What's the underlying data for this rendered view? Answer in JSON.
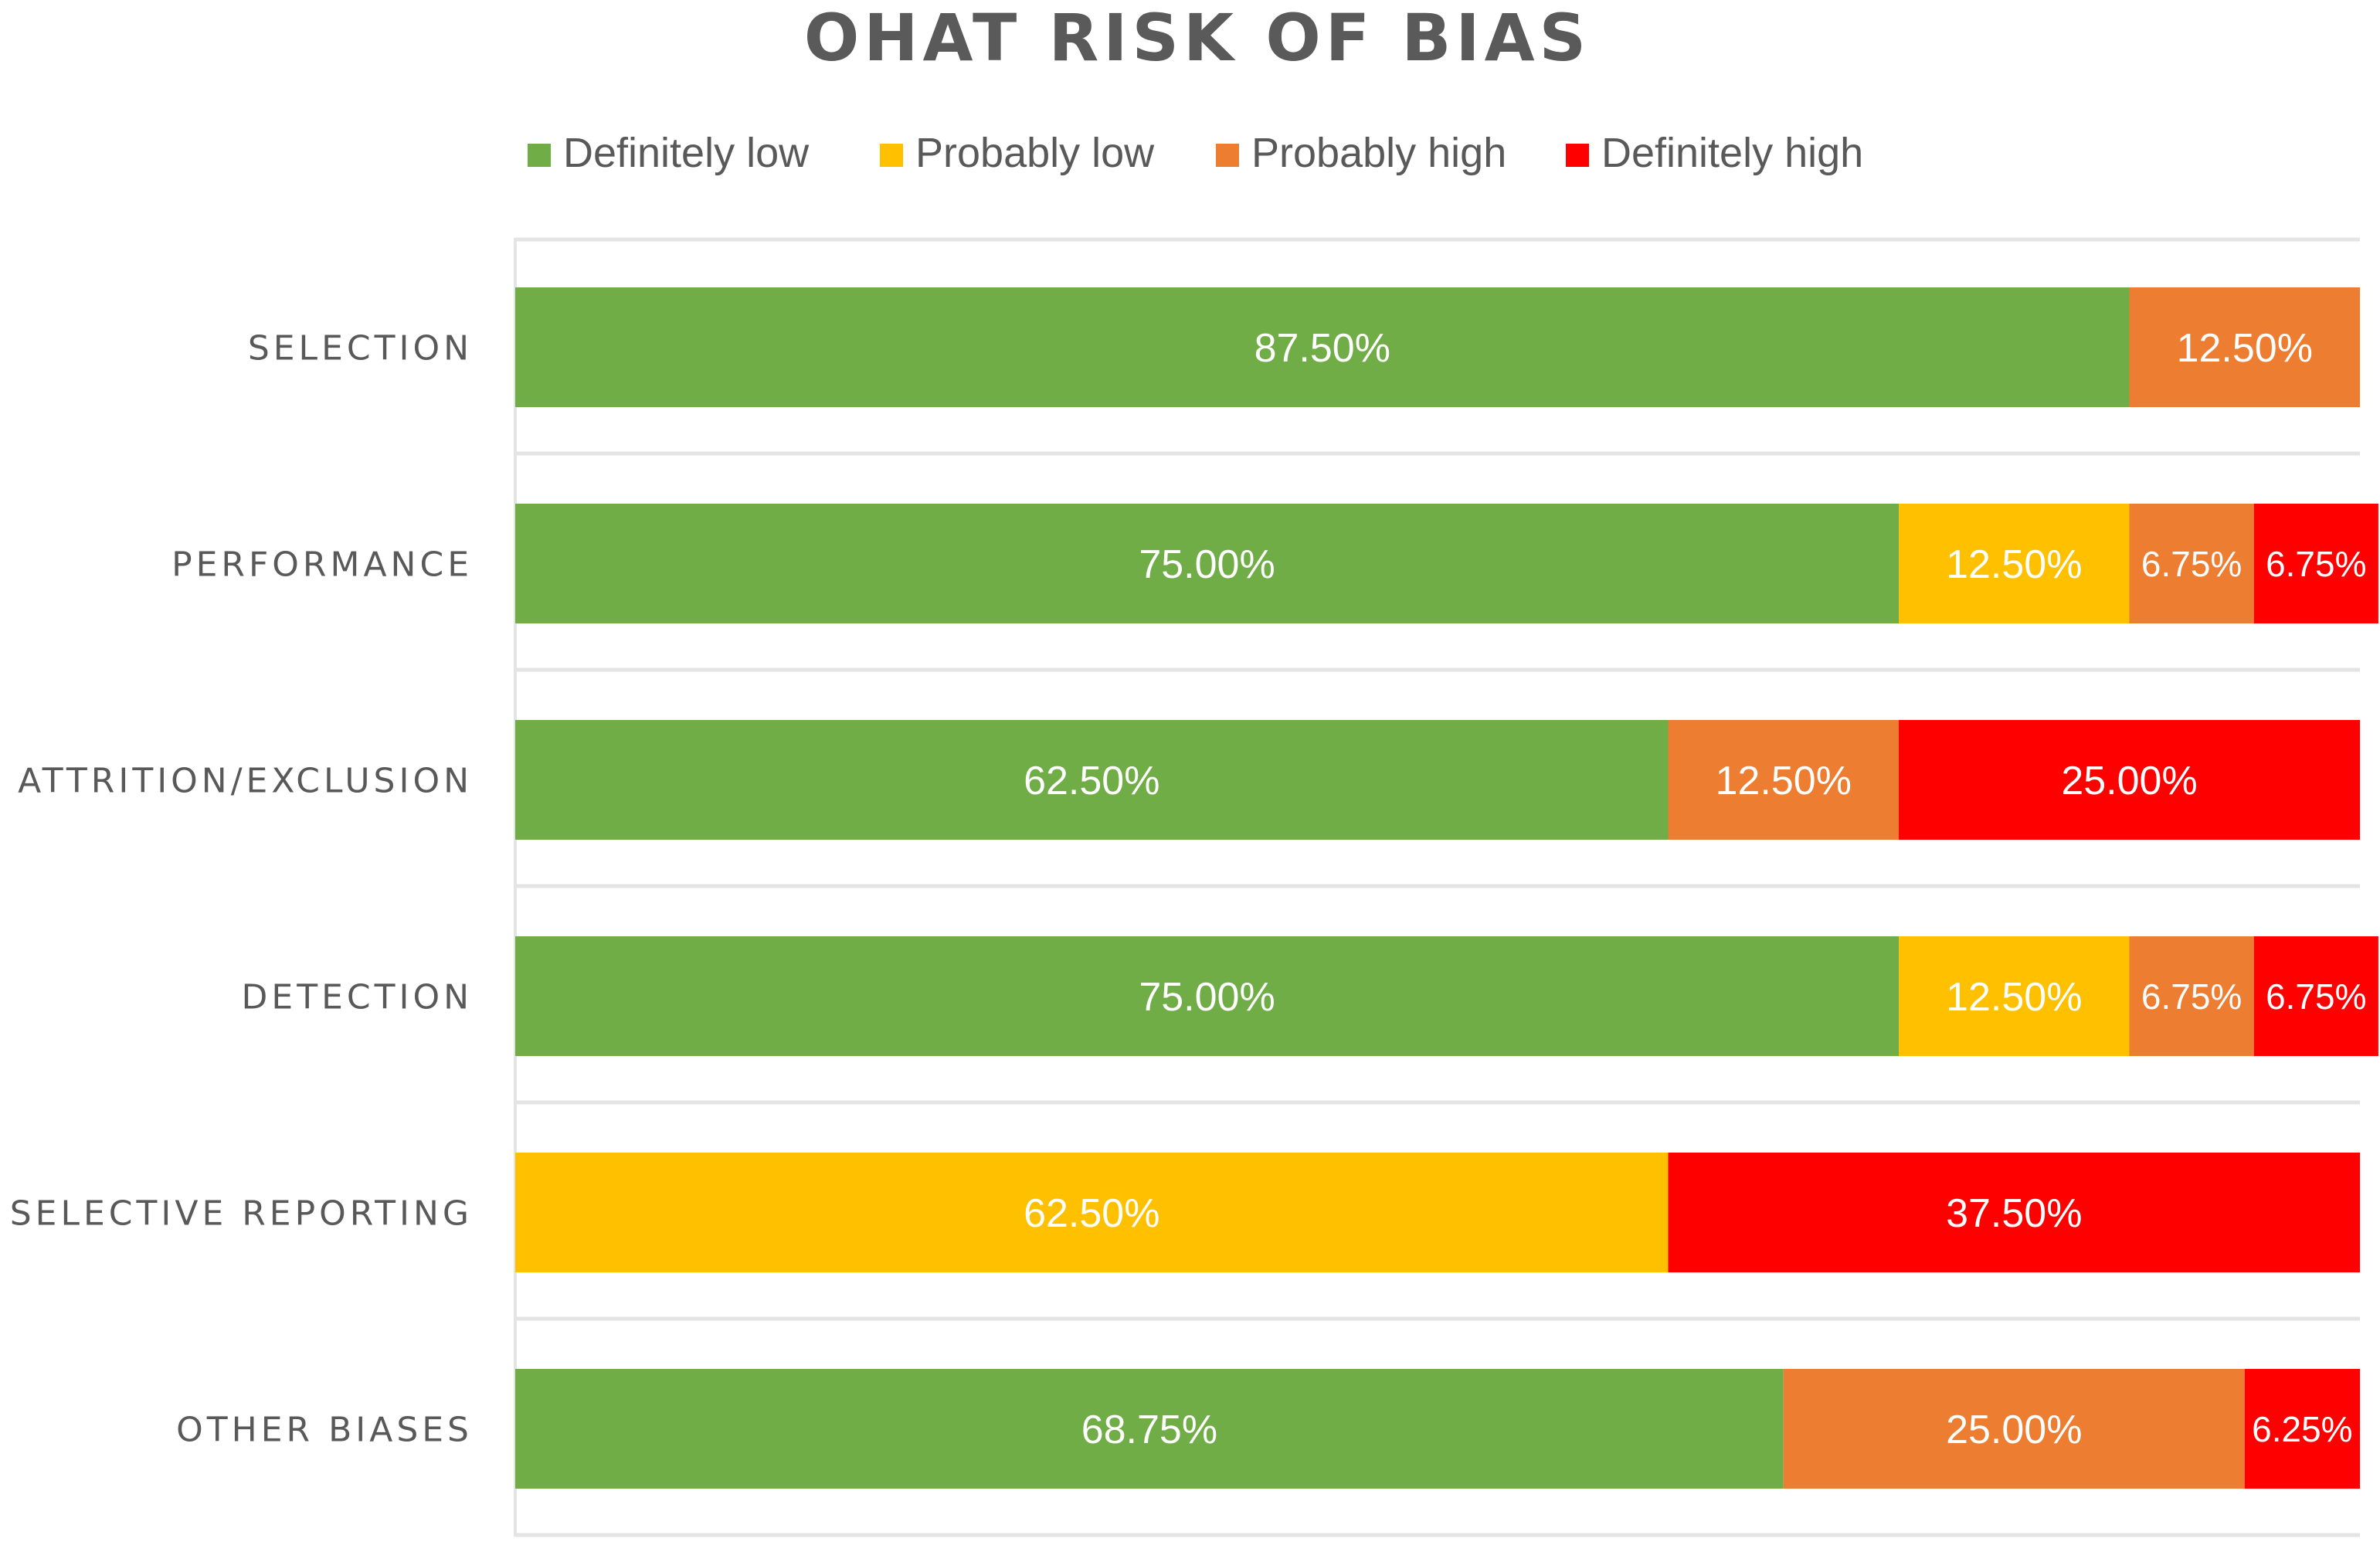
{
  "chart_data": {
    "type": "bar",
    "orientation": "horizontal",
    "stacked": true,
    "title": "OHAT RISK OF BIAS",
    "legend_position": "top",
    "xlim": [
      0,
      100
    ],
    "categories": [
      "SELECTION",
      "PERFORMANCE",
      "ATTRITION/EXCLUSION",
      "DETECTION",
      "SELECTIVE REPORTING",
      "OTHER BIASES"
    ],
    "series": [
      {
        "name": "Definitely low",
        "color": "#70ad47",
        "values": [
          87.5,
          75.0,
          62.5,
          75.0,
          0,
          68.75
        ],
        "labels": [
          "87.50%",
          "75.00%",
          "62.50%",
          "75.00%",
          "",
          "68.75%"
        ]
      },
      {
        "name": "Probably low",
        "color": "#ffc000",
        "values": [
          0,
          12.5,
          0,
          12.5,
          62.5,
          0
        ],
        "labels": [
          "",
          "12.50%",
          "",
          "12.50%",
          "62.50%",
          ""
        ]
      },
      {
        "name": "Probably high",
        "color": "#ed7d31",
        "values": [
          12.5,
          6.75,
          12.5,
          6.75,
          0,
          25.0
        ],
        "labels": [
          "12.50%",
          "6.75%",
          "12.50%",
          "6.75%",
          "",
          "25.00%"
        ]
      },
      {
        "name": "Definitely high",
        "color": "#ff0000",
        "values": [
          0,
          6.75,
          25.0,
          6.75,
          37.5,
          6.25
        ],
        "labels": [
          "",
          "6.75%",
          "25.00%",
          "6.75%",
          "37.50%",
          "6.25%"
        ]
      }
    ]
  }
}
